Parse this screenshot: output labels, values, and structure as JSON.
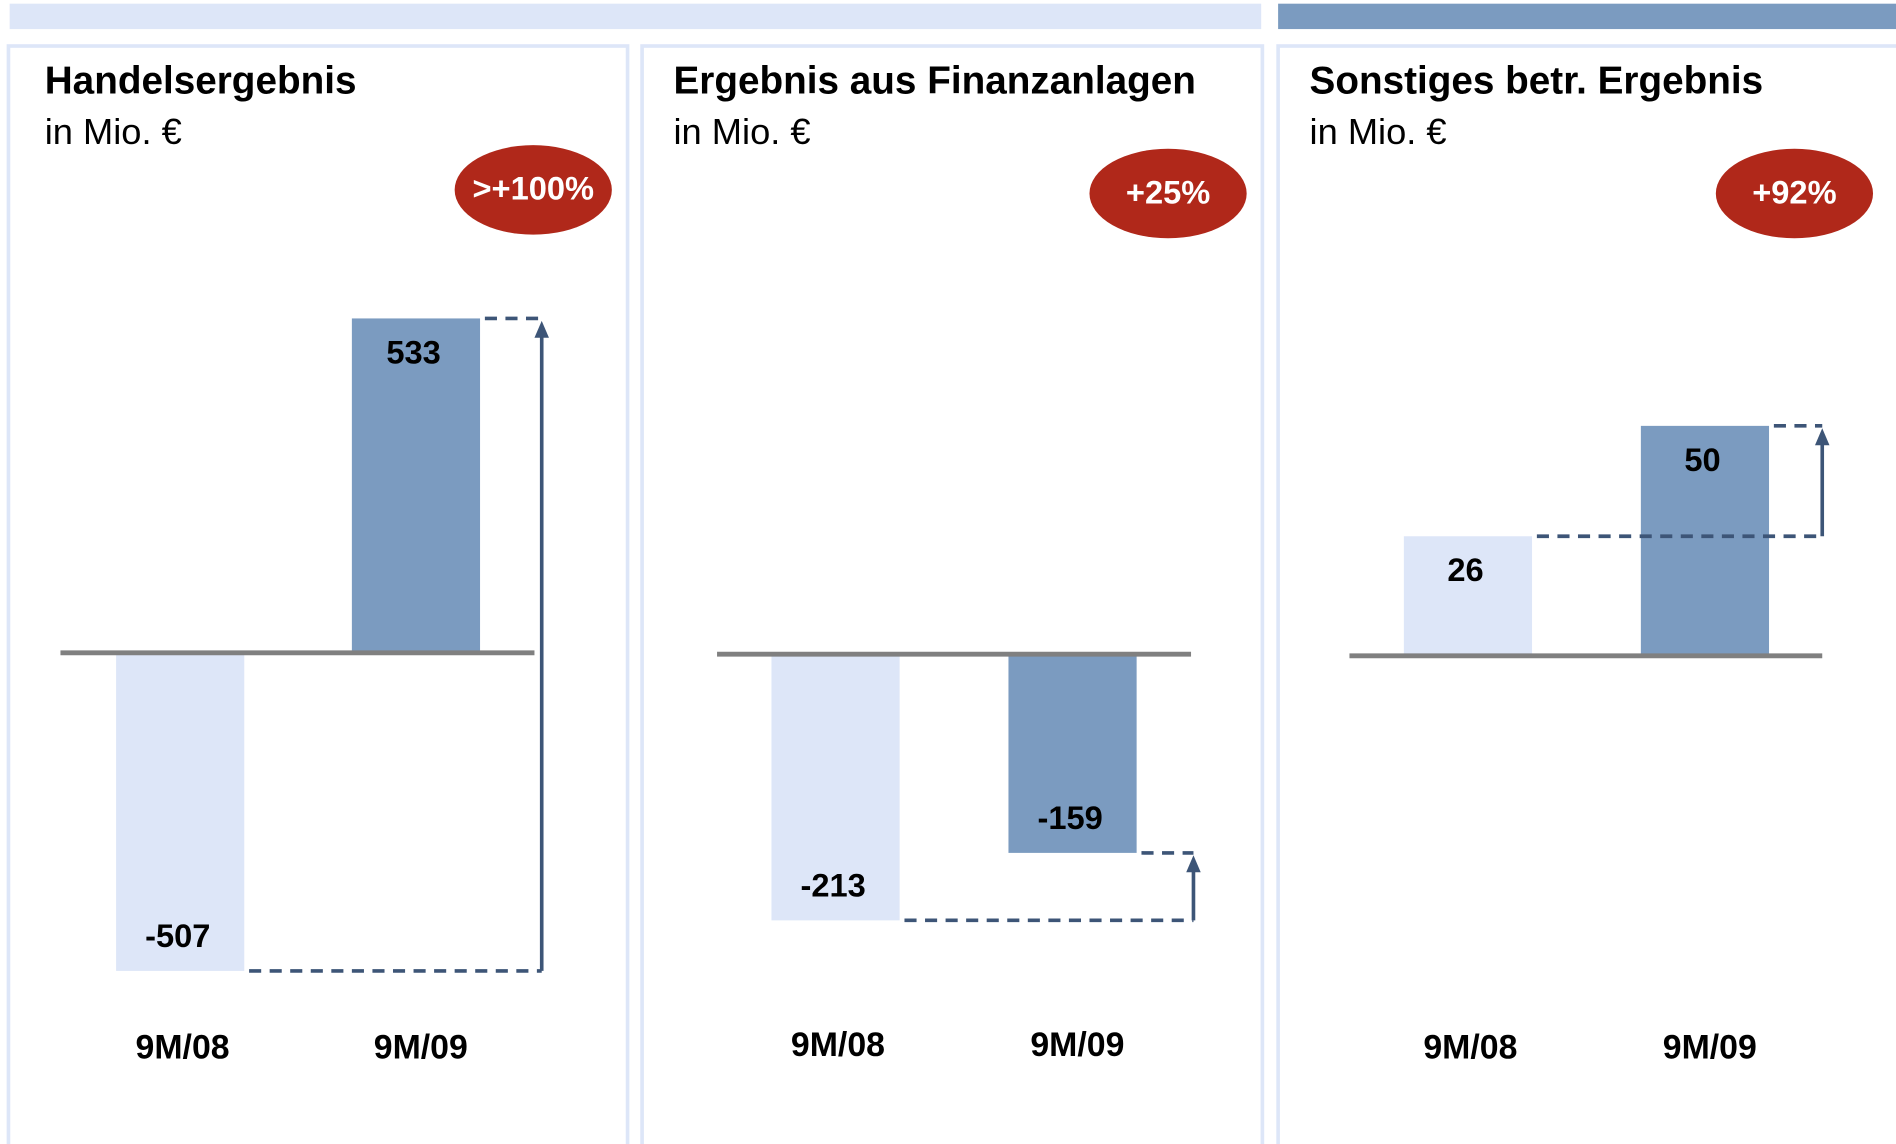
{
  "chart_data": [
    {
      "type": "bar",
      "title": "Handelsergebnis",
      "subtitle": "in Mio. €",
      "annotation": ">+100%",
      "categories": [
        "9M/08",
        "9M/09"
      ],
      "values": [
        -507,
        533
      ],
      "colors": [
        "#dde6f8",
        "#7b9bc0"
      ],
      "ylim": [
        -540,
        655
      ]
    },
    {
      "type": "bar",
      "title": "Ergebnis aus Finanzanlagen",
      "subtitle": "in Mio. €",
      "annotation": "+25%",
      "categories": [
        "9M/08",
        "9M/09"
      ],
      "values": [
        -213,
        -159
      ],
      "colors": [
        "#dde6f8",
        "#7b9bc0"
      ],
      "ylim": [
        -270,
        330
      ]
    },
    {
      "type": "bar",
      "title": "Sonstiges betr. Ergebnis",
      "subtitle": "in Mio. €",
      "annotation": "+92%",
      "categories": [
        "9M/08",
        "9M/09"
      ],
      "values": [
        26,
        50
      ],
      "colors": [
        "#dde6f8",
        "#7b9bc0"
      ],
      "ylim": [
        -73,
        90
      ]
    }
  ]
}
